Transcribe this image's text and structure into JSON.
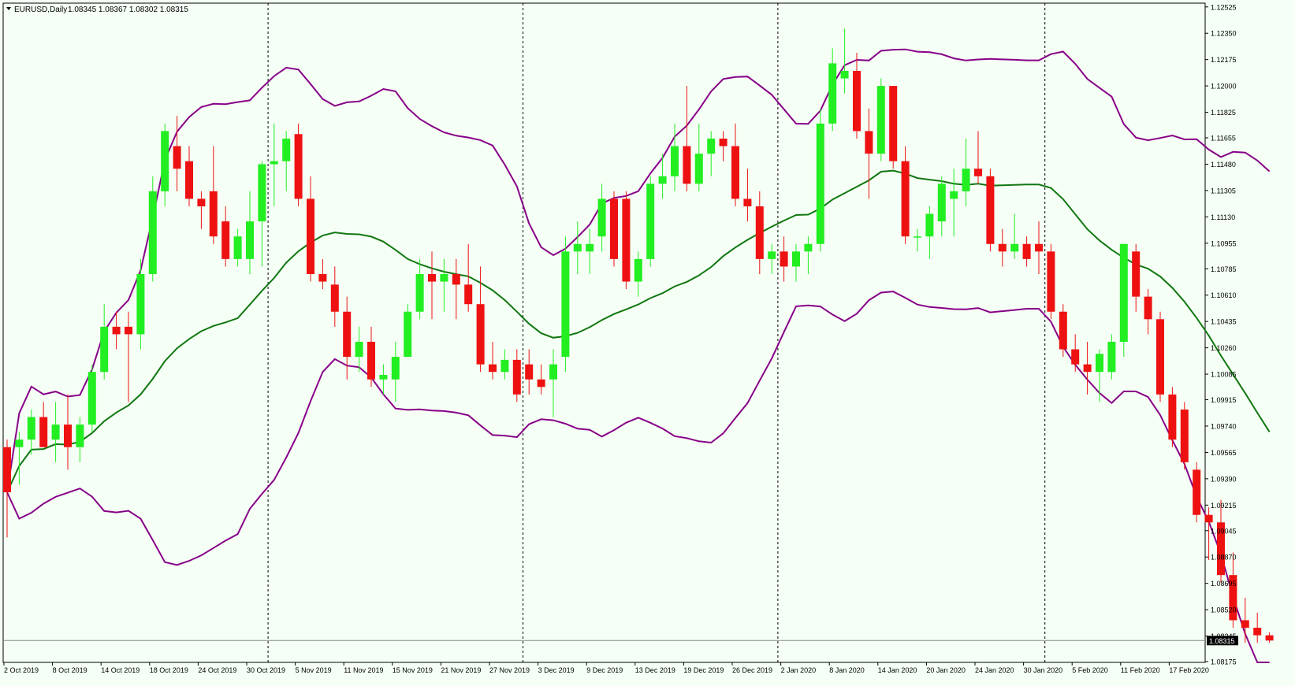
{
  "header": {
    "symbol_label": "EURUSD,Daily",
    "ohlc": "1.08345 1.08367 1.08302 1.08315"
  },
  "colors": {
    "background": "#F5FFF5",
    "bull": "#22EE22",
    "bear": "#EE1111",
    "band": "#880088",
    "ma": "#117711",
    "axis": "#000000"
  },
  "chart_data": {
    "type": "candlestick",
    "ylim": [
      1.0817,
      1.1255
    ],
    "y_ticks": [
      "1.12525",
      "1.12350",
      "1.12175",
      "1.12000",
      "1.11825",
      "1.11655",
      "1.11480",
      "1.11305",
      "1.11130",
      "1.10955",
      "1.10785",
      "1.10610",
      "1.10435",
      "1.10260",
      "1.10085",
      "1.09915",
      "1.09740",
      "1.09565",
      "1.09390",
      "1.09215",
      "1.09045",
      "1.08870",
      "1.08695",
      "1.08520",
      "1.08345",
      "1.08175"
    ],
    "current_price": "1.08315",
    "x_labels": [
      "2 Oct 2019",
      "8 Oct 2019",
      "14 Oct 2019",
      "18 Oct 2019",
      "24 Oct 2019",
      "30 Oct 2019",
      "5 Nov 2019",
      "11 Nov 2019",
      "15 Nov 2019",
      "21 Nov 2019",
      "27 Nov 2019",
      "3 Dec 2019",
      "9 Dec 2019",
      "13 Dec 2019",
      "19 Dec 2019",
      "26 Dec 2019",
      "2 Jan 2020",
      "8 Jan 2020",
      "14 Jan 2020",
      "20 Jan 2020",
      "24 Jan 2020",
      "30 Jan 2020",
      "5 Feb 2020",
      "11 Feb 2020",
      "17 Feb 2020"
    ],
    "x_label_index": [
      0,
      4,
      8,
      12,
      16,
      20,
      24,
      28,
      32,
      36,
      40,
      44,
      48,
      52,
      56,
      60,
      64,
      68,
      72,
      76,
      80,
      84,
      88,
      92,
      96
    ],
    "separator_index": [
      22,
      43,
      64,
      86
    ],
    "candles": [
      [
        1.096,
        1.0965,
        1.09,
        1.093
      ],
      [
        1.096,
        1.097,
        1.0935,
        1.0965
      ],
      [
        1.0965,
        1.0985,
        1.0955,
        1.098
      ],
      [
        1.098,
        1.099,
        1.096,
        1.096
      ],
      [
        1.0965,
        1.099,
        1.095,
        1.0975
      ],
      [
        1.0975,
        1.0995,
        1.0945,
        1.096
      ],
      [
        1.096,
        1.098,
        1.095,
        1.0975
      ],
      [
        1.0975,
        1.1015,
        1.097,
        1.101
      ],
      [
        1.101,
        1.1055,
        1.1005,
        1.104
      ],
      [
        1.104,
        1.105,
        1.1025,
        1.1035
      ],
      [
        1.104,
        1.105,
        1.099,
        1.1035
      ],
      [
        1.1035,
        1.1085,
        1.1025,
        1.1075
      ],
      [
        1.1075,
        1.114,
        1.107,
        1.113
      ],
      [
        1.113,
        1.1175,
        1.112,
        1.117
      ],
      [
        1.116,
        1.118,
        1.113,
        1.1145
      ],
      [
        1.115,
        1.116,
        1.112,
        1.1125
      ],
      [
        1.1125,
        1.113,
        1.1105,
        1.112
      ],
      [
        1.113,
        1.116,
        1.1095,
        1.11
      ],
      [
        1.111,
        1.112,
        1.108,
        1.1085
      ],
      [
        1.1085,
        1.1105,
        1.108,
        1.11
      ],
      [
        1.1085,
        1.113,
        1.1075,
        1.111
      ],
      [
        1.111,
        1.115,
        1.108,
        1.1148
      ],
      [
        1.1148,
        1.1175,
        1.112,
        1.115
      ],
      [
        1.115,
        1.117,
        1.113,
        1.1165
      ],
      [
        1.1168,
        1.1175,
        1.112,
        1.1125
      ],
      [
        1.1125,
        1.114,
        1.107,
        1.1075
      ],
      [
        1.1075,
        1.1085,
        1.1065,
        1.107
      ],
      [
        1.1068,
        1.108,
        1.104,
        1.105
      ],
      [
        1.105,
        1.106,
        1.1005,
        1.102
      ],
      [
        1.102,
        1.104,
        1.101,
        1.103
      ],
      [
        1.103,
        1.104,
        1.1,
        1.1005
      ],
      [
        1.1005,
        1.1015,
        1.0995,
        1.1008
      ],
      [
        1.1005,
        1.103,
        1.099,
        1.102
      ],
      [
        1.102,
        1.1055,
        1.102,
        1.105
      ],
      [
        1.105,
        1.1085,
        1.1045,
        1.1075
      ],
      [
        1.1075,
        1.109,
        1.1045,
        1.107
      ],
      [
        1.107,
        1.1085,
        1.105,
        1.1075
      ],
      [
        1.1075,
        1.1085,
        1.1045,
        1.1068
      ],
      [
        1.1068,
        1.1095,
        1.105,
        1.1055
      ],
      [
        1.1055,
        1.108,
        1.101,
        1.1015
      ],
      [
        1.1015,
        1.103,
        1.1005,
        1.101
      ],
      [
        1.101,
        1.1025,
        1.1005,
        1.1018
      ],
      [
        1.1018,
        1.1025,
        1.099,
        1.0995
      ],
      [
        1.1015,
        1.1025,
        1.0995,
        1.1005
      ],
      [
        1.1005,
        1.1015,
        1.0995,
        1.1
      ],
      [
        1.1005,
        1.1025,
        1.098,
        1.1015
      ],
      [
        1.102,
        1.11,
        1.101,
        1.109
      ],
      [
        1.109,
        1.111,
        1.1075,
        1.1095
      ],
      [
        1.109,
        1.1105,
        1.1075,
        1.1095
      ],
      [
        1.11,
        1.1135,
        1.109,
        1.1125
      ],
      [
        1.1125,
        1.113,
        1.108,
        1.1085
      ],
      [
        1.1125,
        1.113,
        1.1065,
        1.107
      ],
      [
        1.107,
        1.109,
        1.106,
        1.1085
      ],
      [
        1.1085,
        1.114,
        1.108,
        1.1135
      ],
      [
        1.1135,
        1.1155,
        1.1125,
        1.114
      ],
      [
        1.114,
        1.1175,
        1.113,
        1.116
      ],
      [
        1.116,
        1.12,
        1.113,
        1.1135
      ],
      [
        1.1135,
        1.1175,
        1.113,
        1.1155
      ],
      [
        1.1155,
        1.117,
        1.114,
        1.1165
      ],
      [
        1.1165,
        1.117,
        1.115,
        1.116
      ],
      [
        1.116,
        1.1175,
        1.112,
        1.1125
      ],
      [
        1.1125,
        1.1145,
        1.111,
        1.112
      ],
      [
        1.112,
        1.113,
        1.1075,
        1.1085
      ],
      [
        1.1085,
        1.1095,
        1.1075,
        1.109
      ],
      [
        1.109,
        1.11,
        1.107,
        1.108
      ],
      [
        1.108,
        1.1095,
        1.107,
        1.109
      ],
      [
        1.109,
        1.11,
        1.1075,
        1.1095
      ],
      [
        1.1095,
        1.1185,
        1.109,
        1.1175
      ],
      [
        1.1175,
        1.1225,
        1.117,
        1.1215
      ],
      [
        1.1205,
        1.1238,
        1.1195,
        1.121
      ],
      [
        1.121,
        1.1222,
        1.1165,
        1.117
      ],
      [
        1.117,
        1.1185,
        1.1125,
        1.1155
      ],
      [
        1.1155,
        1.1205,
        1.115,
        1.12
      ],
      [
        1.12,
        1.12,
        1.1145,
        1.115
      ],
      [
        1.115,
        1.116,
        1.1095,
        1.11
      ],
      [
        1.11,
        1.1105,
        1.109,
        1.11
      ],
      [
        1.11,
        1.112,
        1.1085,
        1.1115
      ],
      [
        1.111,
        1.114,
        1.11,
        1.1135
      ],
      [
        1.1125,
        1.1145,
        1.11,
        1.113
      ],
      [
        1.113,
        1.1165,
        1.112,
        1.1145
      ],
      [
        1.1145,
        1.117,
        1.1135,
        1.114
      ],
      [
        1.114,
        1.1145,
        1.109,
        1.1095
      ],
      [
        1.1095,
        1.1105,
        1.108,
        1.109
      ],
      [
        1.109,
        1.1115,
        1.1085,
        1.1095
      ],
      [
        1.1095,
        1.11,
        1.108,
        1.1085
      ],
      [
        1.1095,
        1.111,
        1.1075,
        1.109
      ],
      [
        1.109,
        1.1095,
        1.1045,
        1.105
      ],
      [
        1.105,
        1.1055,
        1.102,
        1.1025
      ],
      [
        1.1025,
        1.1035,
        1.101,
        1.1015
      ],
      [
        1.1015,
        1.103,
        1.0995,
        1.101
      ],
      [
        1.101,
        1.1025,
        1.099,
        1.1022
      ],
      [
        1.101,
        1.1035,
        1.1005,
        1.103
      ],
      [
        1.103,
        1.1095,
        1.102,
        1.1095
      ],
      [
        1.109,
        1.1095,
        1.105,
        1.106
      ],
      [
        1.106,
        1.1065,
        1.1035,
        1.1045
      ],
      [
        1.1045,
        1.105,
        1.099,
        1.0995
      ],
      [
        1.0995,
        1.1,
        1.096,
        1.0965
      ],
      [
        1.0985,
        1.099,
        1.0945,
        1.095
      ],
      [
        1.0945,
        1.095,
        1.091,
        1.0915
      ],
      [
        1.0915,
        1.092,
        1.0885,
        1.091
      ],
      [
        1.091,
        1.0925,
        1.087,
        1.0875
      ],
      [
        1.0875,
        1.089,
        1.084,
        1.0845
      ],
      [
        1.0845,
        1.086,
        1.083,
        1.084
      ],
      [
        1.084,
        1.085,
        1.083,
        1.0835
      ],
      [
        1.0835,
        1.0837,
        1.083,
        1.08315
      ]
    ]
  }
}
